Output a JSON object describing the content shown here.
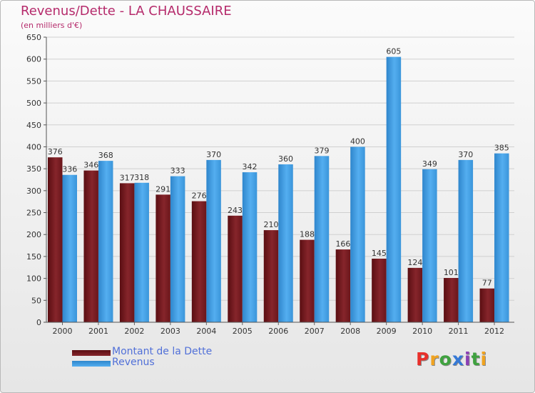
{
  "chart_data": {
    "type": "bar",
    "title": "Revenus/Dette - LA CHAUSSAIRE",
    "subtitle": "(en milliers d'€)",
    "categories": [
      "2000",
      "2001",
      "2002",
      "2003",
      "2004",
      "2005",
      "2006",
      "2007",
      "2008",
      "2009",
      "2010",
      "2011",
      "2012"
    ],
    "series": [
      {
        "name": "Montant de la Dette",
        "color": "#7a1d22",
        "values": [
          376,
          346,
          317,
          291,
          276,
          243,
          210,
          188,
          166,
          145,
          124,
          101,
          77
        ]
      },
      {
        "name": "Revenus",
        "color": "#3f9ce0",
        "values": [
          336,
          368,
          318,
          333,
          370,
          342,
          360,
          379,
          400,
          605,
          349,
          370,
          385
        ]
      }
    ],
    "ylim": [
      0,
      650
    ],
    "yticks": [
      0,
      50,
      100,
      150,
      200,
      250,
      300,
      350,
      400,
      450,
      500,
      550,
      600,
      650
    ],
    "grid": true,
    "legend_position": "bottom-left"
  },
  "brand": {
    "logo_letters": [
      "P",
      "r",
      "o",
      "x",
      "i",
      "t",
      "i"
    ],
    "logo_colors": [
      "#e8302b",
      "#f0a320",
      "#3fa23f",
      "#3579d6",
      "#8b3fb5",
      "#3fa23f",
      "#f0a320"
    ]
  }
}
